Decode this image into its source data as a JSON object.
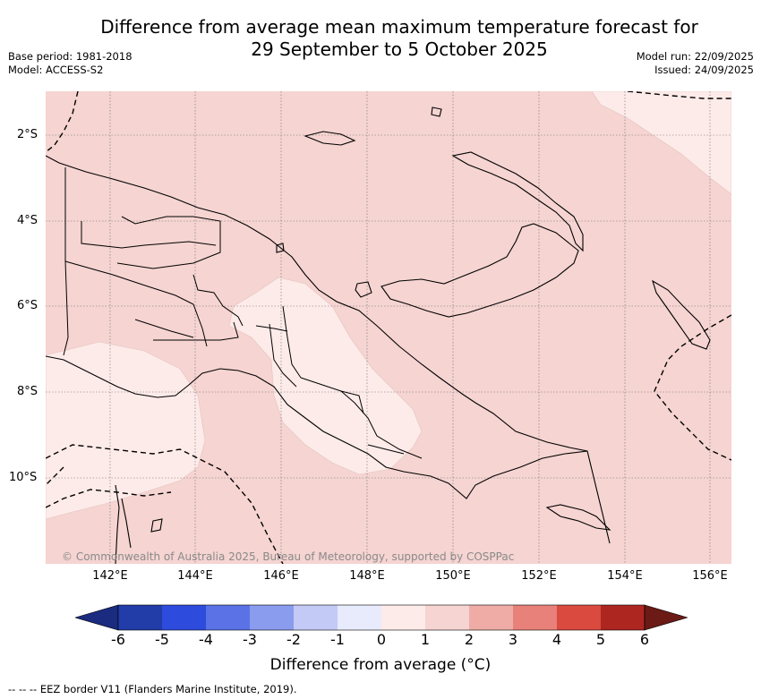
{
  "header": {
    "title_line1": "Difference from average mean maximum temperature forecast for",
    "title_line2": "29 September to 5 October 2025",
    "base_period": "Base period: 1981-2018",
    "model": "Model: ACCESS-S2",
    "model_run": "Model run: 22/09/2025",
    "issued": "Issued: 24/09/2025"
  },
  "map": {
    "latitude_labels": [
      "2°S",
      "4°S",
      "6°S",
      "8°S",
      "10°S"
    ],
    "longitude_labels": [
      "142°E",
      "144°E",
      "146°E",
      "148°E",
      "150°E",
      "152°E",
      "154°E",
      "156°E"
    ],
    "copyright": "© Commonwealth of Australia 2025, Bureau of Meteorology, supported by COSPPac",
    "colors": {
      "anomaly_0_to_1": "#fdebe9",
      "anomaly_1_to_2": "#f5d4d1",
      "land_outline": "#000000",
      "eez_border": "#000000",
      "graticule": "#6e6e6e"
    }
  },
  "colorbar": {
    "tick_labels": [
      "-6",
      "-5",
      "-4",
      "-3",
      "-2",
      "-1",
      "0",
      "1",
      "2",
      "3",
      "4",
      "5",
      "6"
    ],
    "bins": [
      {
        "range": "-6 to -5",
        "color": "#223ca8"
      },
      {
        "range": "-5 to -4",
        "color": "#2d4bdc"
      },
      {
        "range": "-4 to -3",
        "color": "#5a72e6"
      },
      {
        "range": "-3 to -2",
        "color": "#8a9cee"
      },
      {
        "range": "-2 to -1",
        "color": "#c3caf6"
      },
      {
        "range": "-1 to 0",
        "color": "#e8ebfb"
      },
      {
        "range": "0 to 1",
        "color": "#fdebe9"
      },
      {
        "range": "1 to 2",
        "color": "#f5d4d1"
      },
      {
        "range": "2 to 3",
        "color": "#efaca6"
      },
      {
        "range": "3 to 4",
        "color": "#e78179"
      },
      {
        "range": "4 to 5",
        "color": "#da4a3f"
      },
      {
        "range": "5 to 6",
        "color": "#ad2620"
      }
    ],
    "below_min_color": "#1a2b80",
    "above_max_color": "#6b1a15",
    "title": "Difference from average (°C)"
  },
  "footer": {
    "eez_legend": "--  --  -- EEZ border V11 (Flanders Marine Institute, 2019)."
  }
}
